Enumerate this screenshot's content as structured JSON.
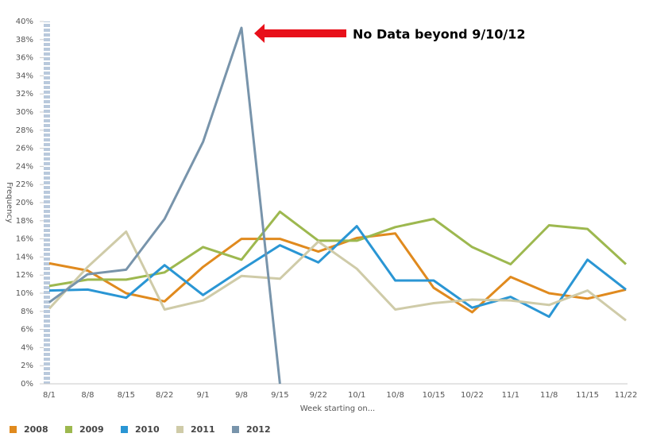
{
  "chart_data": {
    "type": "line",
    "annotation": "No Data beyond 9/10/12",
    "y_label": "Frequency",
    "x_label": "Week starting on...",
    "categories": [
      "8/1",
      "8/8",
      "8/15",
      "8/22",
      "9/1",
      "9/8",
      "9/15",
      "9/22",
      "10/1",
      "10/8",
      "10/15",
      "10/22",
      "11/1",
      "11/8",
      "11/15",
      "11/22"
    ],
    "series": [
      {
        "name": "2008",
        "color": "#e08a1e",
        "values": [
          13.3,
          12.5,
          10.0,
          9.1,
          12.9,
          16.0,
          16.0,
          14.6,
          16.1,
          16.6,
          10.6,
          7.9,
          11.8,
          10.0,
          9.4,
          10.4
        ]
      },
      {
        "name": "2009",
        "color": "#9db84f",
        "values": [
          10.8,
          11.5,
          11.5,
          12.3,
          15.1,
          13.7,
          19.0,
          15.8,
          15.8,
          17.3,
          18.2,
          15.1,
          13.2,
          17.5,
          17.1,
          13.2
        ]
      },
      {
        "name": "2010",
        "color": "#2a96d4",
        "values": [
          10.3,
          10.4,
          9.5,
          13.1,
          9.8,
          12.6,
          15.3,
          13.4,
          17.4,
          11.4,
          11.4,
          8.4,
          9.6,
          7.4,
          13.7,
          10.4
        ]
      },
      {
        "name": "2011",
        "color": "#cfcba8",
        "values": [
          8.3,
          12.9,
          16.8,
          8.2,
          9.2,
          11.9,
          11.6,
          15.7,
          12.7,
          8.2,
          8.9,
          9.3,
          9.2,
          8.7,
          10.3,
          7.0
        ]
      },
      {
        "name": "2012",
        "color": "#7894ab",
        "values": [
          9.0,
          12.1,
          12.6,
          18.2,
          26.7,
          39.3,
          0,
          null,
          null,
          null,
          null,
          null,
          null,
          null,
          null,
          null
        ]
      }
    ],
    "ylim": [
      0,
      40
    ],
    "yticks": [
      {
        "value": 0,
        "label": "0%"
      },
      {
        "value": 2,
        "label": "2%"
      },
      {
        "value": 4,
        "label": "4%"
      },
      {
        "value": 6,
        "label": "6%"
      },
      {
        "value": 8,
        "label": "8%"
      },
      {
        "value": 10,
        "label": "10%"
      },
      {
        "value": 12,
        "label": "12%"
      },
      {
        "value": 14,
        "label": "14%"
      },
      {
        "value": 16,
        "label": "16%"
      },
      {
        "value": 18,
        "label": "18%"
      },
      {
        "value": 20,
        "label": "20%"
      },
      {
        "value": 22,
        "label": "22%"
      },
      {
        "value": 24,
        "label": "24%"
      },
      {
        "value": 26,
        "label": "26%"
      },
      {
        "value": 28,
        "label": "28%"
      },
      {
        "value": 30,
        "label": "30%"
      },
      {
        "value": 32,
        "label": "32%"
      },
      {
        "value": 34,
        "label": "34%"
      },
      {
        "value": 36,
        "label": "36%"
      },
      {
        "value": 38,
        "label": "38%"
      },
      {
        "value": 40,
        "label": "40%"
      }
    ],
    "grid": false,
    "legend": "bottom"
  }
}
